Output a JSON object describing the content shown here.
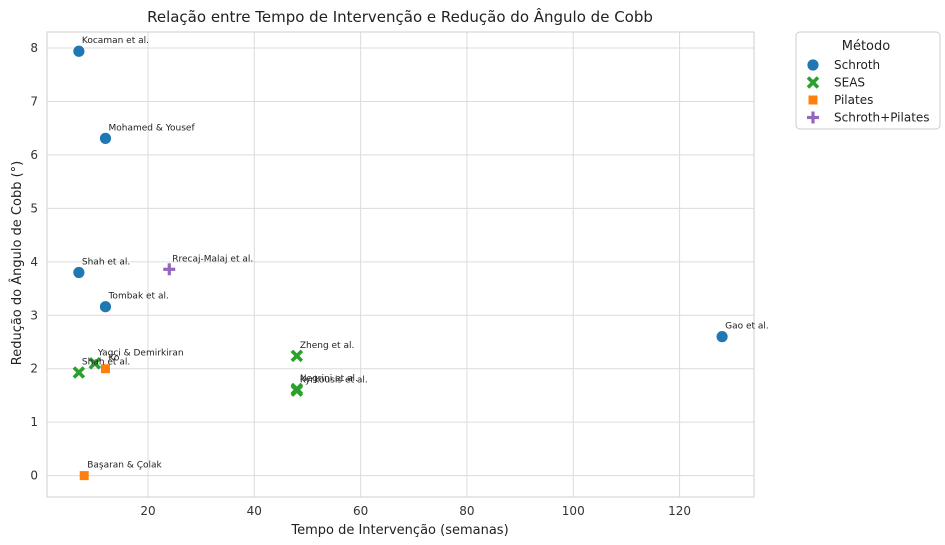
{
  "chart_data": {
    "type": "scatter",
    "title": "Relação entre Tempo de Intervenção e Redução do Ângulo de Cobb",
    "xlabel": "Tempo de Intervenção (semanas)",
    "ylabel": "Redução do Ângulo de Cobb (°)",
    "xlim": [
      1,
      134
    ],
    "ylim": [
      -0.4,
      8.3
    ],
    "xticks": [
      20,
      40,
      60,
      80,
      100,
      120
    ],
    "yticks": [
      0,
      1,
      2,
      3,
      4,
      5,
      6,
      7,
      8
    ],
    "grid": true,
    "legend": {
      "title": "Método",
      "placement": "outside-top-right",
      "entries": [
        "Schroth",
        "SEAS",
        "Pilates",
        "Schroth+Pilates"
      ]
    },
    "series": [
      {
        "name": "Schroth",
        "marker": "circle",
        "color": "#1f77b4",
        "points": [
          {
            "x": 7,
            "y": 7.94,
            "label": "Kocaman et al."
          },
          {
            "x": 12,
            "y": 6.31,
            "label": "Mohamed & Yousef"
          },
          {
            "x": 7,
            "y": 3.8,
            "label": "Shah et al."
          },
          {
            "x": 12,
            "y": 3.16,
            "label": "Tombak et al."
          },
          {
            "x": 128,
            "y": 2.6,
            "label": "Gao et al."
          }
        ]
      },
      {
        "name": "SEAS",
        "marker": "x",
        "color": "#2ca02c",
        "points": [
          {
            "x": 48,
            "y": 2.24,
            "label": "Zheng et al."
          },
          {
            "x": 10,
            "y": 2.1,
            "label": "Yagci & Demirkiran"
          },
          {
            "x": 7,
            "y": 1.93,
            "label": "Shah et al."
          },
          {
            "x": 48,
            "y": 1.62,
            "label": "Negrini et al."
          },
          {
            "x": 48,
            "y": 1.59,
            "label": "Kyrkousis et al."
          }
        ]
      },
      {
        "name": "Pilates",
        "marker": "square",
        "color": "#ff7f0e",
        "points": [
          {
            "x": 12,
            "y": 2.0,
            "label": "Ko"
          },
          {
            "x": 8,
            "y": 0.0,
            "label": "Başaran & Çolak"
          }
        ]
      },
      {
        "name": "Schroth+Pilates",
        "marker": "plus",
        "color": "#9467bd",
        "points": [
          {
            "x": 24,
            "y": 3.86,
            "label": "Rrecaj-Malaj et al."
          }
        ]
      }
    ]
  }
}
